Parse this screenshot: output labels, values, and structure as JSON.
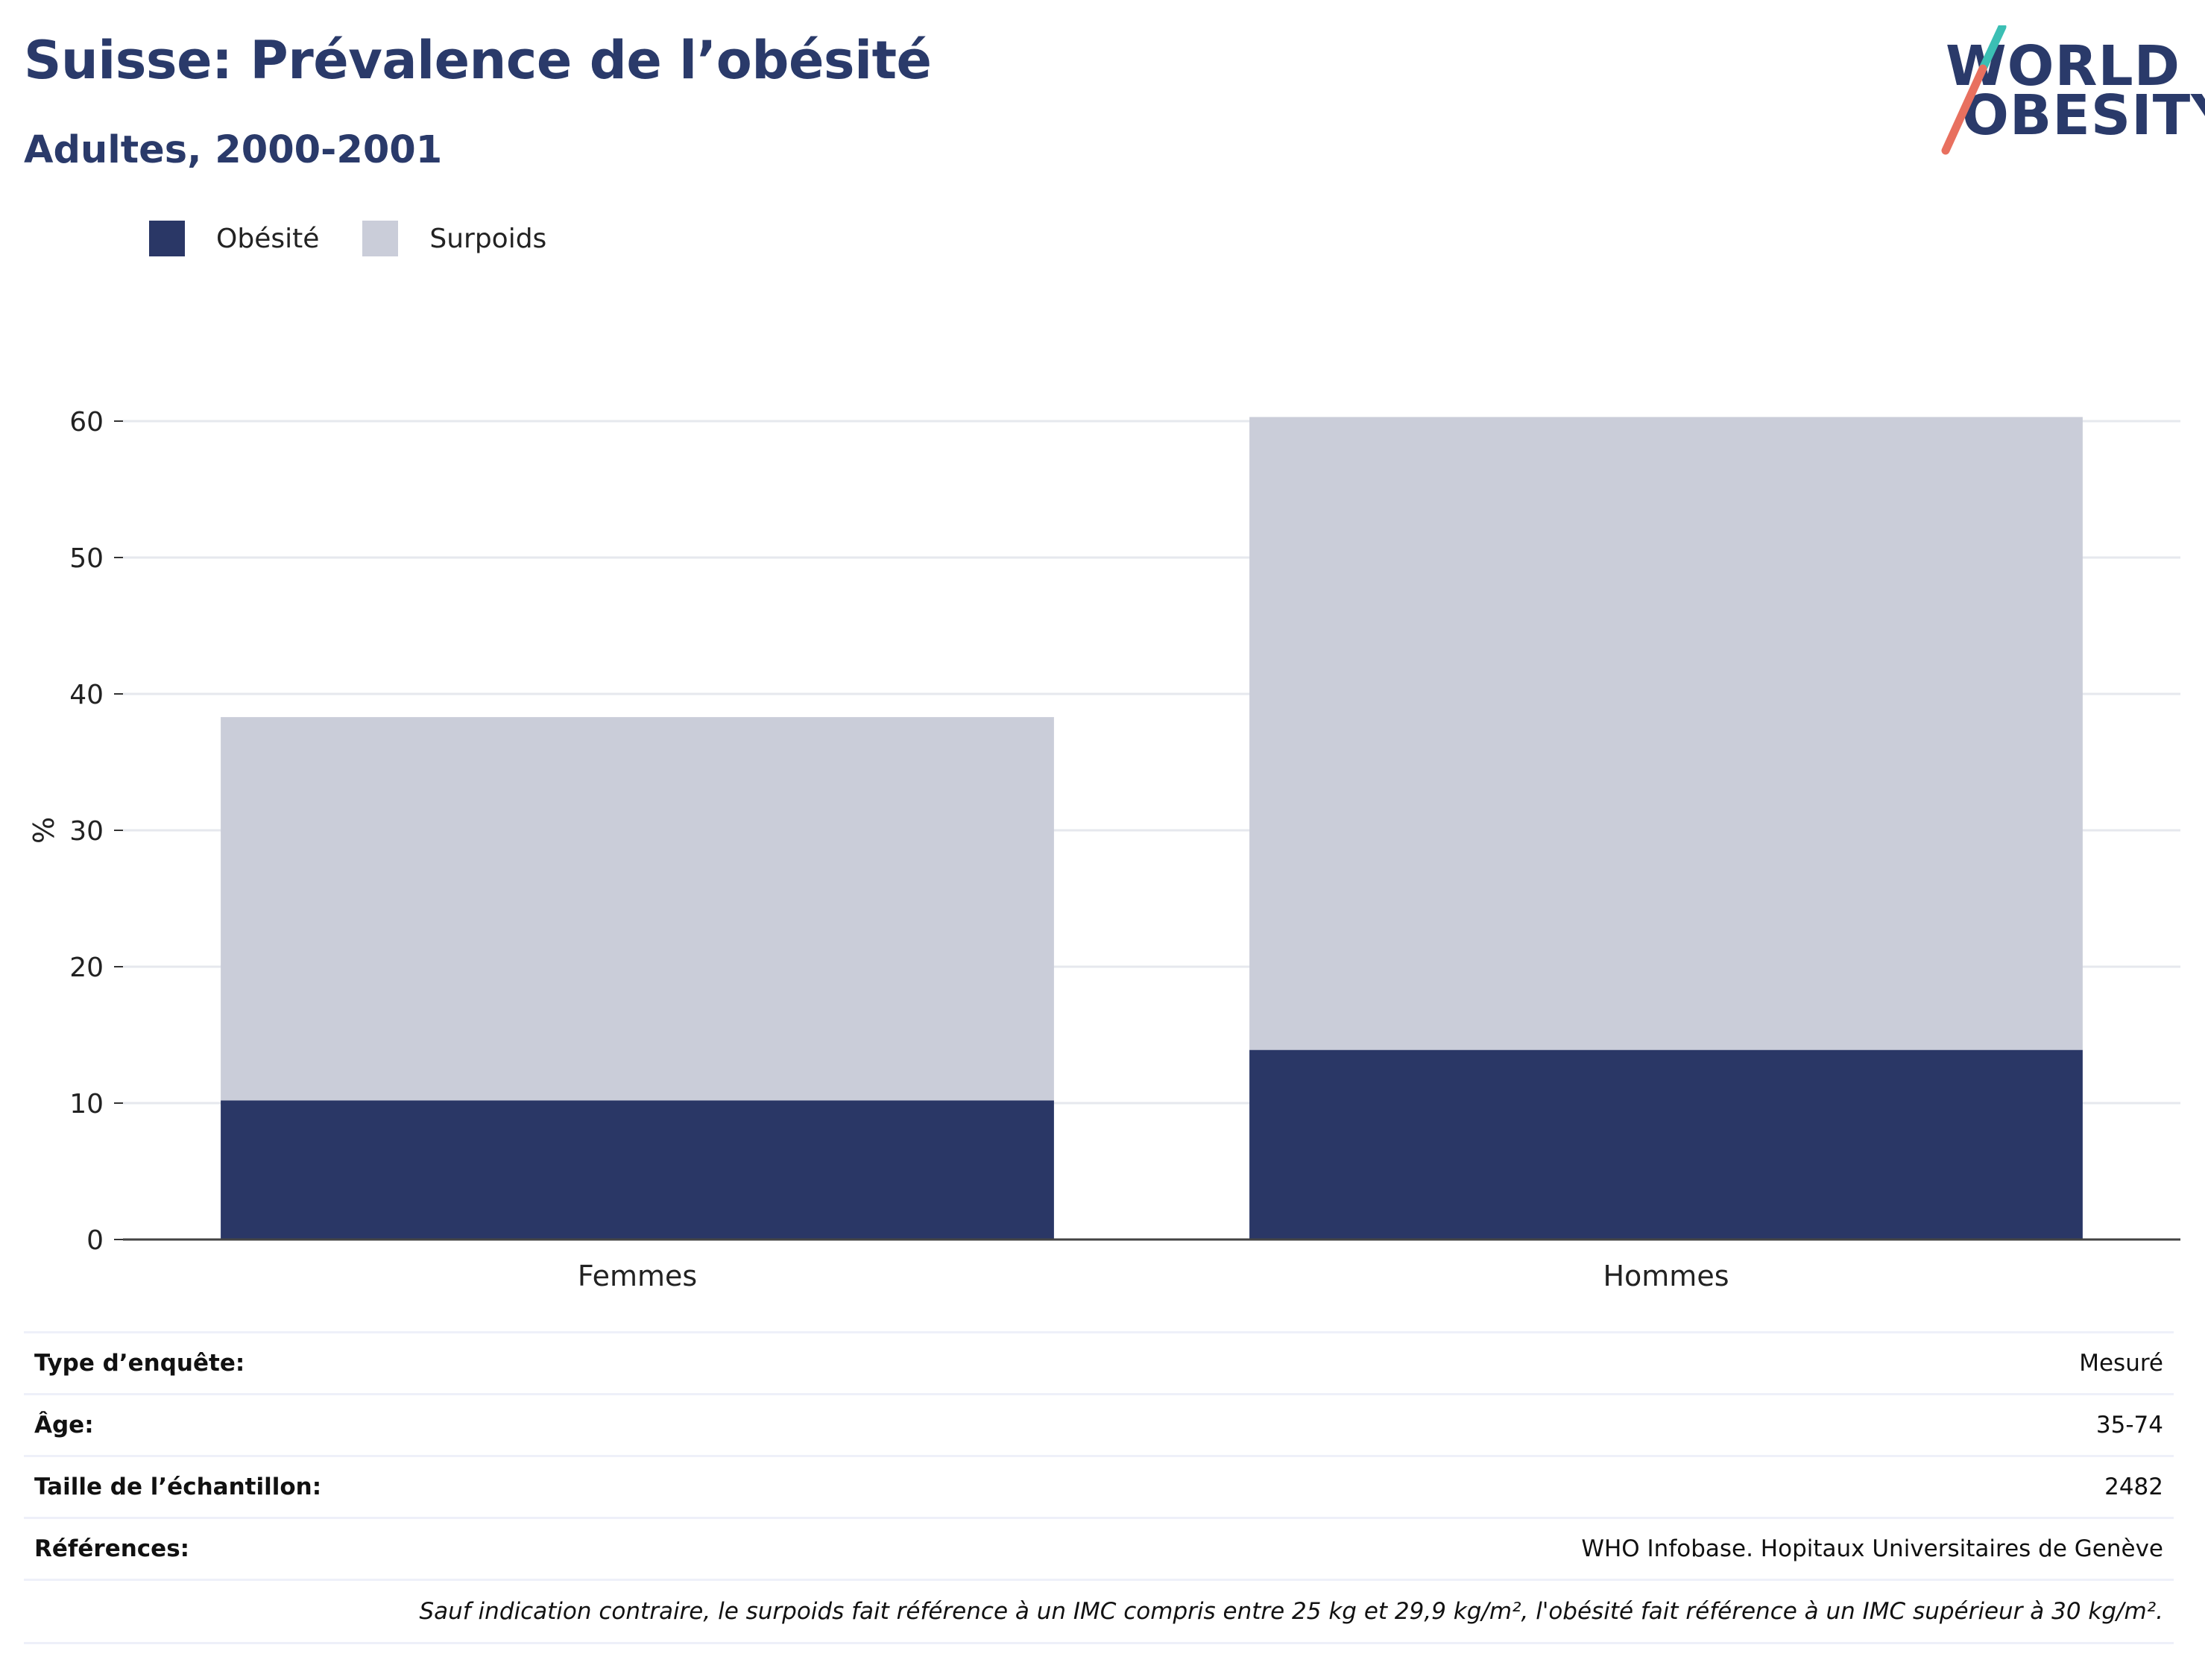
{
  "header": {
    "title": "Suisse: Prévalence de l’obésité",
    "subtitle": "Adultes, 2000-2001"
  },
  "logo": {
    "line1": "WORLD",
    "line2": "OBESITY",
    "colors": {
      "text": "#2a3a6a",
      "slash_top": "#3bbfb4",
      "slash_bottom": "#e8705f"
    }
  },
  "legend": [
    {
      "label": "Obésité",
      "color": "#2a3766"
    },
    {
      "label": "Surpoids",
      "color": "#cacdd9"
    }
  ],
  "chart_data": {
    "type": "bar",
    "stacked": true,
    "categories": [
      "Femmes",
      "Hommes"
    ],
    "series": [
      {
        "name": "Obésité",
        "values": [
          10.2,
          13.9
        ],
        "color": "#2a3766"
      },
      {
        "name": "Surpoids",
        "values": [
          28.1,
          46.4
        ],
        "color": "#cacdd9"
      }
    ],
    "ylabel": "%",
    "ylim": [
      0,
      60
    ],
    "yticks": [
      0,
      10,
      20,
      30,
      40,
      50,
      60
    ],
    "grid": true,
    "legend_position": "top-left"
  },
  "info": {
    "rows": [
      {
        "label": "Type d’enquête:",
        "value": "Mesuré"
      },
      {
        "label": "Âge:",
        "value": "35-74"
      },
      {
        "label": "Taille de l’échantillon:",
        "value": "2482"
      },
      {
        "label": "Références:",
        "value": "WHO Infobase. Hopitaux Universitaires de Genève"
      }
    ],
    "footnote": "Sauf indication contraire, le surpoids fait référence à un IMC compris entre 25 kg et 29,9 kg/m², l'obésité fait référence à un IMC supérieur à 30 kg/m²."
  }
}
